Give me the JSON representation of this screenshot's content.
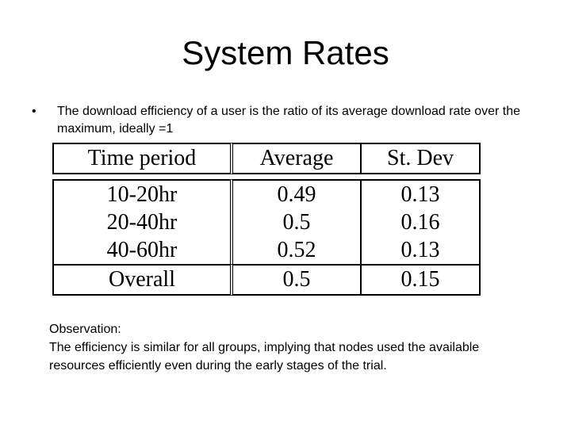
{
  "slide": {
    "title": "System Rates",
    "bullet_marker": "•",
    "bullet_text": "The download efficiency of a user is the ratio of its average download rate over the maximum, ideally =1",
    "observation_heading": "Observation:",
    "observation_text": "The efficiency is similar for all groups, implying that nodes used the available resources efficiently even during the early stages of the trial."
  },
  "table": {
    "headers": [
      "Time period",
      "Average",
      "St. Dev"
    ],
    "rows": [
      [
        "10-20hr",
        "0.49",
        "0.13"
      ],
      [
        "20-40hr",
        "0.5",
        "0.16"
      ],
      [
        "40-60hr",
        "0.52",
        "0.13"
      ]
    ],
    "overall": [
      "Overall",
      "0.5",
      "0.15"
    ]
  }
}
